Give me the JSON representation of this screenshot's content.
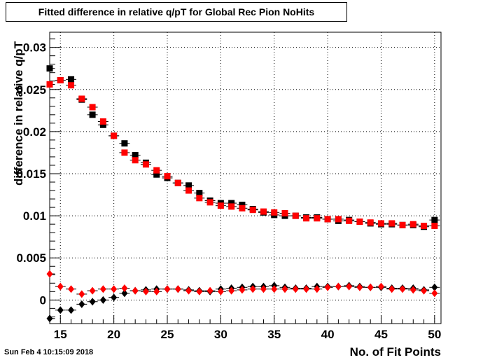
{
  "timestamp": "Sun Feb  4 10:15:09 2018",
  "chart_data": {
    "type": "scatter",
    "title": "Fitted difference in relative q/pT for Global Rec Pion NoHits",
    "xlabel": "No. of Fit Points",
    "ylabel": "difference in relative q/pT",
    "xlim": [
      14,
      50.6
    ],
    "ylim": [
      -0.0028,
      0.0318
    ],
    "xticks": [
      15,
      20,
      25,
      30,
      35,
      40,
      45,
      50
    ],
    "yticks": [
      0,
      0.005,
      0.01,
      0.015,
      0.02,
      0.025,
      0.03
    ],
    "ytick_labels": [
      "0",
      "0.005",
      "0.01",
      "0.015",
      "0.02",
      "0.025",
      "0.03"
    ],
    "x": [
      14,
      15,
      16,
      17,
      18,
      19,
      20,
      21,
      22,
      23,
      24,
      25,
      26,
      27,
      28,
      29,
      30,
      31,
      32,
      33,
      34,
      35,
      36,
      37,
      38,
      39,
      40,
      41,
      42,
      43,
      44,
      45,
      46,
      47,
      48,
      49,
      50
    ],
    "series": [
      {
        "marker": "square",
        "color": "#000000",
        "values": [
          0.0275,
          0.0261,
          0.0262,
          0.0238,
          0.022,
          0.0208,
          0.0195,
          0.0186,
          0.0172,
          0.0163,
          0.0149,
          0.0145,
          0.0139,
          0.0136,
          0.0127,
          0.0118,
          0.0115,
          0.0115,
          0.0113,
          0.0108,
          0.0104,
          0.0101,
          0.01,
          0.01,
          0.0098,
          0.0098,
          0.0096,
          0.0094,
          0.0095,
          0.0093,
          0.0091,
          0.009,
          0.009,
          0.0089,
          0.0089,
          0.0087,
          0.0095
        ]
      },
      {
        "marker": "square",
        "color": "#ff0000",
        "values": [
          0.0256,
          0.0261,
          0.0255,
          0.0239,
          0.0229,
          0.0212,
          0.0195,
          0.0175,
          0.0166,
          0.0161,
          0.0154,
          0.0147,
          0.0139,
          0.013,
          0.0121,
          0.0116,
          0.0112,
          0.0111,
          0.0109,
          0.0107,
          0.0105,
          0.0104,
          0.0103,
          0.01,
          0.0097,
          0.0097,
          0.0096,
          0.0096,
          0.0094,
          0.0093,
          0.0092,
          0.0091,
          0.0091,
          0.0089,
          0.009,
          0.0088,
          0.0088
        ]
      },
      {
        "marker": "diamond",
        "color": "#000000",
        "values": [
          -0.0022,
          -0.0012,
          -0.0012,
          -0.0005,
          -0.0002,
          0.0,
          0.0003,
          0.0008,
          0.0011,
          0.0012,
          0.0013,
          0.0013,
          0.0013,
          0.0012,
          0.0011,
          0.001,
          0.0013,
          0.0014,
          0.0015,
          0.0016,
          0.0016,
          0.0017,
          0.0015,
          0.0014,
          0.0014,
          0.0016,
          0.0016,
          0.0016,
          0.0017,
          0.0016,
          0.0015,
          0.0015,
          0.0014,
          0.0014,
          0.0014,
          0.0012,
          0.0015
        ]
      },
      {
        "marker": "diamond",
        "color": "#ff0000",
        "values": [
          0.0031,
          0.0016,
          0.0013,
          0.0007,
          0.0011,
          0.0013,
          0.0013,
          0.0014,
          0.0011,
          0.001,
          0.001,
          0.0013,
          0.0013,
          0.0011,
          0.001,
          0.0011,
          0.001,
          0.0011,
          0.0012,
          0.0013,
          0.0013,
          0.0013,
          0.0013,
          0.0013,
          0.0013,
          0.0013,
          0.0015,
          0.0016,
          0.0016,
          0.0015,
          0.0015,
          0.0016,
          0.0013,
          0.0013,
          0.0012,
          0.0011,
          0.0008
        ]
      }
    ]
  }
}
